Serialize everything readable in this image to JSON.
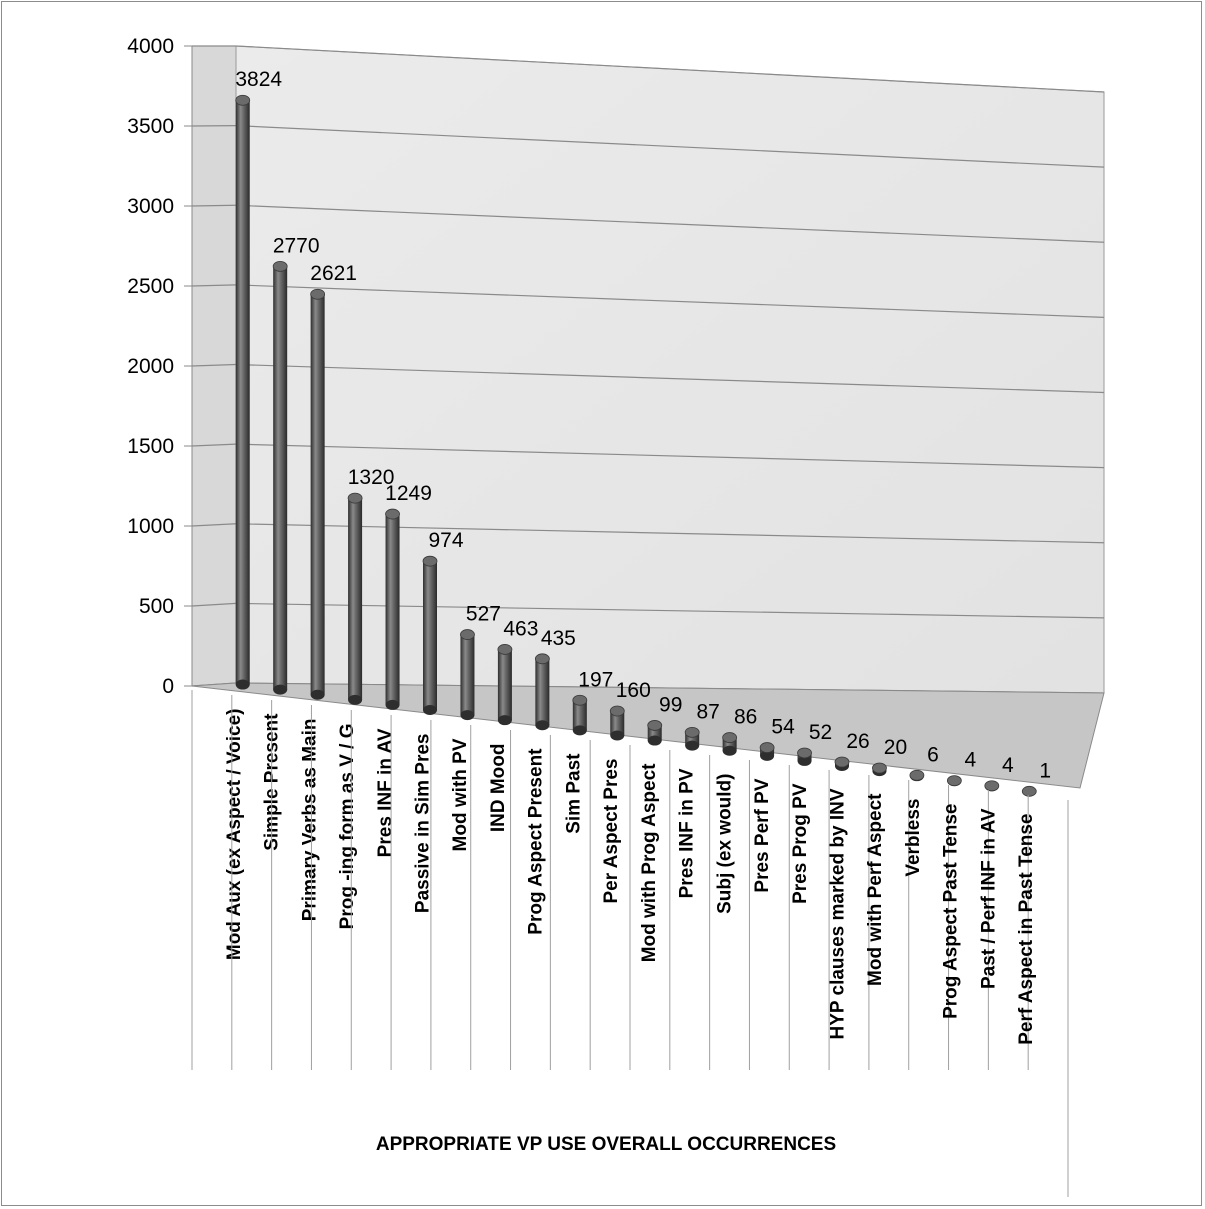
{
  "chart_data": {
    "type": "bar",
    "style": "3d-cylinder",
    "title": "",
    "xlabel": "APPROPRIATE VP USE OVERALL OCCURRENCES",
    "ylabel": "",
    "ylim": [
      0,
      4000
    ],
    "yticks": [
      "0",
      "500",
      "1000",
      "1500",
      "2000",
      "2500",
      "3000",
      "3500",
      "4000"
    ],
    "grid": true,
    "legend": "none",
    "colors": {
      "bar": "#5a5a5a",
      "wall": "#e6e6e6",
      "floor": "#c8c8c8",
      "grid": "#8a8a8a"
    },
    "categories": [
      "Mod Aux (ex Aspect / Voice)",
      "Simple Present",
      "Primary Verbs as Main",
      "Prog -ing form as V / G",
      "Pres INF in AV",
      "Passive in Sim Pres",
      "Mod with PV",
      "IND Mood",
      "Prog Aspect Present",
      "Sim Past",
      "Per Aspect Pres",
      "Mod with Prog Aspect",
      "Pres INF in PV",
      "Subj (ex would)",
      "Pres Perf PV",
      "Pres Prog PV",
      "HYP clauses marked by INV",
      "Mod with Perf Aspect",
      "Verbless",
      "Prog Aspect Past Tense",
      "Past / Perf INF in AV",
      "Perf Aspect in Past Tense"
    ],
    "values": [
      3824,
      2770,
      2621,
      1320,
      1249,
      974,
      527,
      463,
      435,
      197,
      160,
      99,
      87,
      86,
      54,
      52,
      26,
      20,
      6,
      4,
      4,
      1
    ],
    "data_labels": [
      "3824",
      "2770",
      "2621",
      "1320",
      "1249",
      "974",
      "527",
      "463",
      "435",
      "197",
      "160",
      "99",
      "87",
      "86",
      "54",
      "52",
      "26",
      "20",
      "6",
      "4",
      "4",
      "1"
    ]
  }
}
